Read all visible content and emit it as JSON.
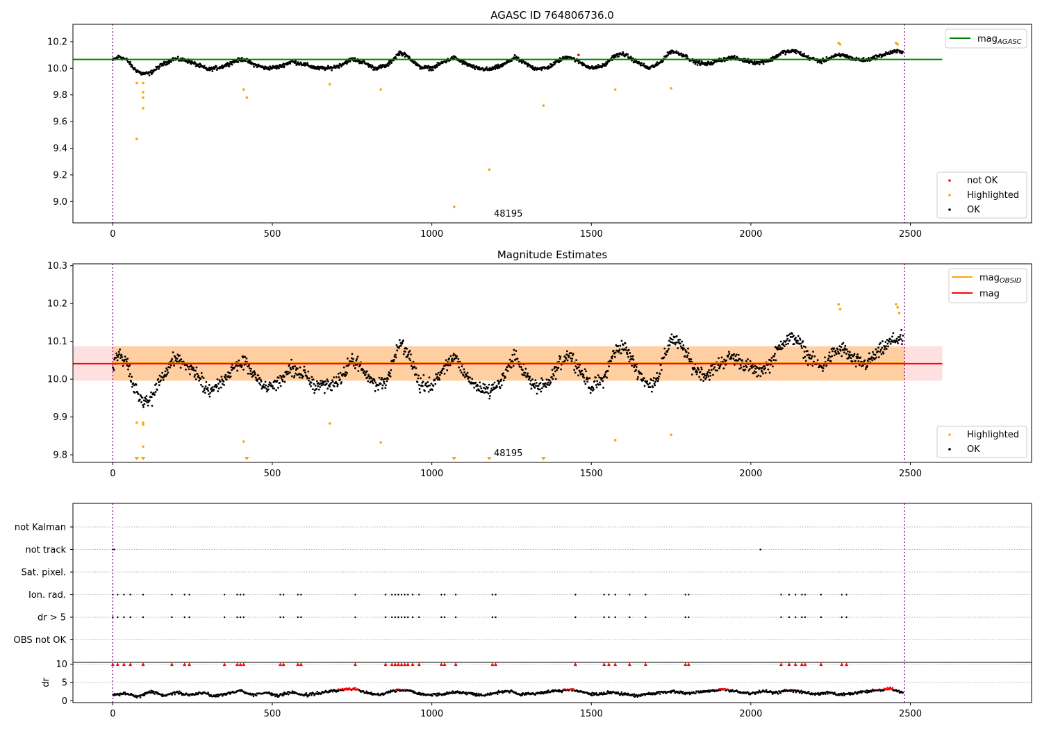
{
  "figure": {
    "panel1_title": "AGASC ID 764806736.0",
    "panel2_title": "Magnitude Estimates",
    "panel1_annotation": "48195",
    "panel2_annotation": "48195"
  },
  "legends": {
    "panel1_upper": [
      {
        "label": "mag",
        "sub": "AGASC",
        "color": "#008000"
      }
    ],
    "panel1_lower": [
      {
        "label": "not OK",
        "color": "#ff0000"
      },
      {
        "label": "Highlighted",
        "color": "#ffa500"
      },
      {
        "label": "OK",
        "color": "#000000"
      }
    ],
    "panel2_upper": [
      {
        "label": "mag",
        "sub": "OBSID",
        "color": "#ffa500"
      },
      {
        "label": "mag",
        "sub": "",
        "color": "#ff0000"
      }
    ],
    "panel2_lower": [
      {
        "label": "Highlighted",
        "color": "#ffa500"
      },
      {
        "label": "OK",
        "color": "#000000"
      }
    ]
  },
  "chart_data": [
    {
      "type": "scatter",
      "title": "AGASC ID 764806736.0",
      "xlim": [
        -125,
        2880
      ],
      "ylim": [
        8.84,
        10.33
      ],
      "xticks": [
        0,
        500,
        1000,
        1500,
        2000,
        2500
      ],
      "yticks": [
        9.0,
        9.2,
        9.4,
        9.6,
        9.8,
        10.0,
        10.2
      ],
      "grid": false,
      "legend_placement": [
        "upper right",
        "lower right"
      ],
      "vlines": [
        0,
        2482
      ],
      "mag_agasc": 10.066,
      "ok_trend": [
        [
          0,
          10.06
        ],
        [
          20,
          10.09
        ],
        [
          45,
          10.06
        ],
        [
          65,
          10.0
        ],
        [
          90,
          9.96
        ],
        [
          115,
          9.96
        ],
        [
          150,
          10.02
        ],
        [
          190,
          10.07
        ],
        [
          230,
          10.06
        ],
        [
          270,
          10.02
        ],
        [
          300,
          9.99
        ],
        [
          340,
          10.01
        ],
        [
          380,
          10.05
        ],
        [
          410,
          10.07
        ],
        [
          440,
          10.03
        ],
        [
          480,
          10.0
        ],
        [
          520,
          10.01
        ],
        [
          560,
          10.05
        ],
        [
          600,
          10.03
        ],
        [
          640,
          10.0
        ],
        [
          680,
          10.0
        ],
        [
          710,
          10.02
        ],
        [
          750,
          10.07
        ],
        [
          790,
          10.04
        ],
        [
          820,
          10.0
        ],
        [
          860,
          10.02
        ],
        [
          900,
          10.12
        ],
        [
          930,
          10.08
        ],
        [
          960,
          10.01
        ],
        [
          1000,
          10.0
        ],
        [
          1040,
          10.05
        ],
        [
          1070,
          10.08
        ],
        [
          1100,
          10.04
        ],
        [
          1140,
          10.0
        ],
        [
          1180,
          9.99
        ],
        [
          1220,
          10.02
        ],
        [
          1260,
          10.08
        ],
        [
          1290,
          10.04
        ],
        [
          1320,
          10.0
        ],
        [
          1360,
          10.0
        ],
        [
          1400,
          10.06
        ],
        [
          1430,
          10.09
        ],
        [
          1460,
          10.05
        ],
        [
          1500,
          10.0
        ],
        [
          1540,
          10.02
        ],
        [
          1570,
          10.09
        ],
        [
          1600,
          10.11
        ],
        [
          1640,
          10.05
        ],
        [
          1680,
          10.0
        ],
        [
          1710,
          10.03
        ],
        [
          1750,
          10.13
        ],
        [
          1790,
          10.1
        ],
        [
          1820,
          10.05
        ],
        [
          1860,
          10.03
        ],
        [
          1900,
          10.06
        ],
        [
          1940,
          10.08
        ],
        [
          1980,
          10.06
        ],
        [
          2020,
          10.04
        ],
        [
          2060,
          10.06
        ],
        [
          2100,
          10.12
        ],
        [
          2140,
          10.13
        ],
        [
          2180,
          10.08
        ],
        [
          2220,
          10.05
        ],
        [
          2260,
          10.09
        ],
        [
          2290,
          10.1
        ],
        [
          2320,
          10.07
        ],
        [
          2360,
          10.06
        ],
        [
          2400,
          10.09
        ],
        [
          2440,
          10.12
        ],
        [
          2470,
          10.13
        ],
        [
          2482,
          10.11
        ]
      ],
      "highlighted": [
        [
          75,
          9.89
        ],
        [
          75,
          9.47
        ],
        [
          95,
          9.89
        ],
        [
          95,
          9.82
        ],
        [
          95,
          9.78
        ],
        [
          95,
          9.7
        ],
        [
          410,
          9.84
        ],
        [
          420,
          9.78
        ],
        [
          680,
          9.88
        ],
        [
          840,
          9.84
        ],
        [
          1070,
          8.96
        ],
        [
          1180,
          9.24
        ],
        [
          1350,
          9.72
        ],
        [
          1575,
          9.84
        ],
        [
          1750,
          9.85
        ],
        [
          2275,
          10.19
        ],
        [
          2280,
          10.18
        ],
        [
          2455,
          10.19
        ],
        [
          2460,
          10.18
        ]
      ],
      "not_ok": [
        [
          1460,
          10.1
        ]
      ],
      "annotation": {
        "text": "48195",
        "x": 1200,
        "y": 8.9
      }
    },
    {
      "type": "scatter",
      "title": "Magnitude Estimates",
      "xlim": [
        -125,
        2880
      ],
      "ylim": [
        9.78,
        10.305
      ],
      "xticks": [
        0,
        500,
        1000,
        1500,
        2000,
        2500
      ],
      "yticks": [
        9.8,
        9.9,
        10.0,
        10.1,
        10.2,
        10.3
      ],
      "grid": false,
      "legend_placement": [
        "upper right",
        "lower right"
      ],
      "vlines": [
        0,
        2482
      ],
      "mag": 10.041,
      "mag_band": [
        9.996,
        10.087
      ],
      "mag_obsid": 10.043,
      "highlighted": [
        [
          75,
          9.885
        ],
        [
          95,
          9.88
        ],
        [
          95,
          9.885
        ],
        [
          95,
          9.822
        ],
        [
          410,
          9.835
        ],
        [
          680,
          9.883
        ],
        [
          840,
          9.833
        ],
        [
          1575,
          9.839
        ],
        [
          1750,
          9.853
        ],
        [
          2275,
          10.198
        ],
        [
          2280,
          10.185
        ],
        [
          2455,
          10.198
        ],
        [
          2460,
          10.19
        ],
        [
          2465,
          10.175
        ]
      ],
      "lower_limits": [
        75,
        95,
        420,
        1070,
        1180,
        1350
      ],
      "annotation": {
        "text": "48195",
        "x": 1200,
        "y": 9.79
      }
    },
    {
      "type": "scatter",
      "title": "",
      "xlim": [
        -125,
        2880
      ],
      "xticks": [
        0,
        500,
        1000,
        1500,
        2000,
        2500
      ],
      "vlines": [
        0,
        2482
      ],
      "flag_rows": [
        "not Kalman",
        "not track",
        "Sat. pixel.",
        "Ion. rad.",
        "dr > 5",
        "OBS not OK"
      ],
      "flags": {
        "not track": [
          0,
          5,
          2030
        ],
        "Ion. rad.": [
          0,
          15,
          35,
          55,
          95,
          185,
          225,
          240,
          350,
          390,
          400,
          410,
          525,
          535,
          580,
          590,
          760,
          855,
          875,
          885,
          895,
          905,
          915,
          925,
          940,
          960,
          1030,
          1040,
          1075,
          1190,
          1200,
          1450,
          1540,
          1555,
          1575,
          1620,
          1670,
          1795,
          1805,
          2095,
          2120,
          2140,
          2160,
          2170,
          2220,
          2285,
          2300
        ],
        "dr > 5": [
          0,
          15,
          35,
          55,
          95,
          185,
          225,
          240,
          350,
          390,
          400,
          410,
          525,
          535,
          580,
          590,
          760,
          855,
          875,
          885,
          895,
          905,
          915,
          925,
          940,
          960,
          1030,
          1040,
          1075,
          1190,
          1200,
          1450,
          1540,
          1555,
          1575,
          1620,
          1670,
          1795,
          1805,
          2095,
          2120,
          2140,
          2160,
          2170,
          2220,
          2285,
          2300
        ]
      },
      "dr_ylabel": "dr",
      "dr_yticks": [
        0,
        5,
        10
      ],
      "dr_ylim": [
        -0.5,
        10.5
      ],
      "dr_clip_value": 10,
      "dr_clipped": [
        0,
        15,
        35,
        55,
        95,
        185,
        225,
        240,
        350,
        390,
        400,
        410,
        525,
        535,
        580,
        590,
        760,
        855,
        875,
        885,
        895,
        905,
        915,
        925,
        940,
        960,
        1030,
        1040,
        1075,
        1190,
        1200,
        1450,
        1540,
        1555,
        1575,
        1620,
        1670,
        1795,
        1805,
        2095,
        2120,
        2140,
        2160,
        2170,
        2220,
        2285,
        2300
      ],
      "dr_trend": [
        [
          0,
          1.5
        ],
        [
          40,
          2.0
        ],
        [
          80,
          1.2
        ],
        [
          120,
          2.6
        ],
        [
          160,
          1.4
        ],
        [
          200,
          2.3
        ],
        [
          240,
          1.6
        ],
        [
          280,
          2.2
        ],
        [
          320,
          1.3
        ],
        [
          360,
          2.0
        ],
        [
          400,
          2.8
        ],
        [
          440,
          1.6
        ],
        [
          480,
          2.2
        ],
        [
          520,
          1.4
        ],
        [
          560,
          2.4
        ],
        [
          600,
          1.5
        ],
        [
          640,
          2.0
        ],
        [
          680,
          2.6
        ],
        [
          720,
          3.0
        ],
        [
          760,
          3.3
        ],
        [
          800,
          2.0
        ],
        [
          840,
          1.8
        ],
        [
          880,
          2.8
        ],
        [
          920,
          3.0
        ],
        [
          960,
          2.0
        ],
        [
          1000,
          1.6
        ],
        [
          1040,
          1.9
        ],
        [
          1080,
          2.4
        ],
        [
          1120,
          2.0
        ],
        [
          1160,
          1.5
        ],
        [
          1200,
          2.2
        ],
        [
          1240,
          2.7
        ],
        [
          1280,
          1.6
        ],
        [
          1320,
          2.0
        ],
        [
          1360,
          2.4
        ],
        [
          1400,
          2.8
        ],
        [
          1440,
          3.0
        ],
        [
          1480,
          2.2
        ],
        [
          1520,
          1.6
        ],
        [
          1560,
          2.4
        ],
        [
          1600,
          1.8
        ],
        [
          1640,
          1.4
        ],
        [
          1680,
          1.9
        ],
        [
          1720,
          2.3
        ],
        [
          1760,
          2.6
        ],
        [
          1800,
          2.0
        ],
        [
          1840,
          2.5
        ],
        [
          1880,
          2.8
        ],
        [
          1920,
          3.1
        ],
        [
          1960,
          2.4
        ],
        [
          2000,
          2.0
        ],
        [
          2040,
          2.6
        ],
        [
          2080,
          2.2
        ],
        [
          2120,
          2.9
        ],
        [
          2160,
          2.4
        ],
        [
          2200,
          1.8
        ],
        [
          2240,
          2.2
        ],
        [
          2280,
          1.6
        ],
        [
          2320,
          2.0
        ],
        [
          2360,
          2.5
        ],
        [
          2400,
          2.9
        ],
        [
          2440,
          3.3
        ],
        [
          2482,
          2.0
        ]
      ]
    }
  ]
}
